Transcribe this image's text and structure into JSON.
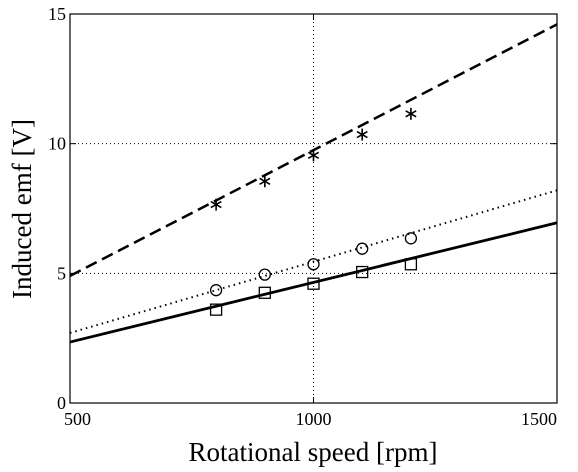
{
  "chart_data": {
    "type": "scatter",
    "title": "",
    "xlabel": "Rotational speed [rpm]",
    "ylabel": "Induced emf [V]",
    "xlim": [
      500,
      1500
    ],
    "ylim": [
      0,
      15
    ],
    "xticks": [
      500,
      1000,
      1500
    ],
    "yticks": [
      0,
      5,
      10,
      15
    ],
    "xtick_labels": [
      "500",
      "1000",
      "1500"
    ],
    "ytick_labels": [
      "0",
      "5",
      "10",
      "15"
    ],
    "grid": "dotted, major ticks",
    "legend": "none",
    "series": [
      {
        "kind": "line",
        "style": "dashed",
        "color": "#000000",
        "x": [
          500,
          1500
        ],
        "y": [
          4.9,
          14.6
        ]
      },
      {
        "kind": "line",
        "style": "dotted",
        "color": "#000000",
        "x": [
          500,
          1500
        ],
        "y": [
          2.7,
          8.2
        ]
      },
      {
        "kind": "line",
        "style": "solid",
        "color": "#000000",
        "x": [
          500,
          1500
        ],
        "y": [
          2.35,
          6.95
        ]
      },
      {
        "kind": "markers",
        "marker": "asterisk",
        "color": "#000000",
        "x": [
          800,
          900,
          1000,
          1100,
          1200
        ],
        "y": [
          7.65,
          8.55,
          9.55,
          10.35,
          11.15
        ]
      },
      {
        "kind": "markers",
        "marker": "circle",
        "color": "#000000",
        "x": [
          800,
          900,
          1000,
          1100,
          1200
        ],
        "y": [
          4.35,
          4.95,
          5.35,
          5.95,
          6.35
        ]
      },
      {
        "kind": "markers",
        "marker": "square",
        "color": "#000000",
        "x": [
          800,
          900,
          1000,
          1100,
          1200
        ],
        "y": [
          3.6,
          4.25,
          4.6,
          5.05,
          5.35
        ]
      }
    ]
  }
}
